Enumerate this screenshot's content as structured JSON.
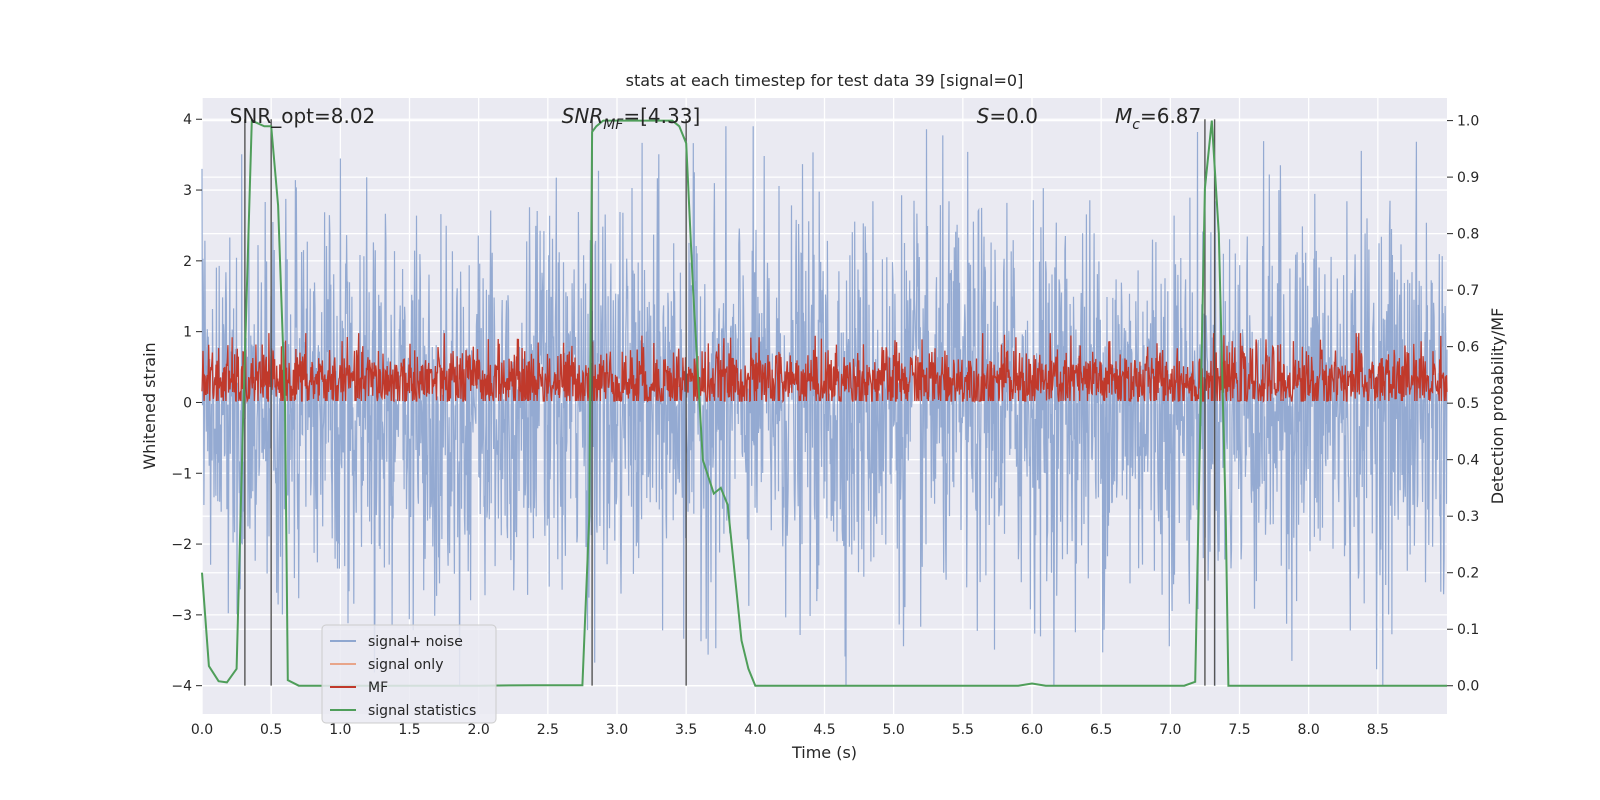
{
  "chart_data": {
    "type": "line",
    "title": "stats at each timestep for test data 39 [signal=0]",
    "xlabel": "Time (s)",
    "ylabel_left": "Whitened strain",
    "ylabel_right": "Detection probability/MF",
    "xlim": [
      0.0,
      9.0
    ],
    "ylim_left": [
      -4.4,
      4.3
    ],
    "ylim_right": [
      -0.05,
      1.04
    ],
    "xticks": [
      "0.0",
      "0.5",
      "1.0",
      "1.5",
      "2.0",
      "2.5",
      "3.0",
      "3.5",
      "4.0",
      "4.5",
      "5.0",
      "5.5",
      "6.0",
      "6.5",
      "7.0",
      "7.5",
      "8.0",
      "8.5"
    ],
    "yticks_left": [
      "4",
      "3",
      "2",
      "1",
      "0",
      "−1",
      "−2",
      "−3",
      "−4"
    ],
    "yticks_right": [
      "1.0",
      "0.9",
      "0.8",
      "0.7",
      "0.6",
      "0.5",
      "0.4",
      "0.3",
      "0.2",
      "0.1",
      "0.0"
    ],
    "grid": true,
    "legend_position": "lower-left",
    "legend": [
      {
        "label": "signal+ noise",
        "color": "#8fa7d0"
      },
      {
        "label": "signal only",
        "color": "#e8a58a"
      },
      {
        "label": "MF",
        "color": "#c0392b"
      },
      {
        "label": "signal statistics",
        "color": "#4f9e5a"
      }
    ],
    "annotations": [
      {
        "text": "SNR_opt=8.02",
        "x": 0.2
      },
      {
        "text": "SNR",
        "sub": "MF",
        "rest": "=[4.33]",
        "x": 2.6
      },
      {
        "text": "S",
        "rest": "=0.0",
        "x": 5.6
      },
      {
        "text": "M",
        "sub": "c",
        "rest": "=6.87",
        "x": 6.6
      }
    ],
    "series": [
      {
        "name": "signal+ noise",
        "axis": "left",
        "color": "#8fa7d0",
        "noise_amplitude": 1.35,
        "x_range": [
          0.0,
          9.0
        ]
      },
      {
        "name": "MF",
        "axis": "left",
        "color": "#c0392b",
        "baseline": 0.3,
        "noise_amplitude": 0.25,
        "x_range": [
          0.0,
          9.0
        ]
      },
      {
        "name": "signal statistics",
        "axis": "right",
        "color": "#4f9e5a",
        "x": [
          0.0,
          0.05,
          0.12,
          0.18,
          0.25,
          0.3,
          0.36,
          0.45,
          0.5,
          0.55,
          0.6,
          0.62,
          0.7,
          2.0,
          2.4,
          2.75,
          2.8,
          2.82,
          2.85,
          2.9,
          3.0,
          3.1,
          3.4,
          3.45,
          3.5,
          3.55,
          3.62,
          3.7,
          3.75,
          3.8,
          3.85,
          3.9,
          3.95,
          4.0,
          4.1,
          5.9,
          6.0,
          6.1,
          7.1,
          7.18,
          7.25,
          7.3,
          7.35,
          7.4,
          7.42,
          7.5,
          9.0
        ],
        "y": [
          0.2,
          0.035,
          0.008,
          0.006,
          0.03,
          0.5,
          1.0,
          0.99,
          0.99,
          0.85,
          0.5,
          0.01,
          0.0,
          0.0,
          0.001,
          0.001,
          0.3,
          0.98,
          0.99,
          1.0,
          1.0,
          1.0,
          1.0,
          0.99,
          0.96,
          0.7,
          0.4,
          0.34,
          0.35,
          0.32,
          0.2,
          0.08,
          0.03,
          0.0,
          0.0,
          0.0,
          0.004,
          0.0,
          0.0,
          0.007,
          0.88,
          1.0,
          0.8,
          0.3,
          0.0,
          0.0,
          0.0
        ]
      }
    ],
    "vertical_lines": [
      0.31,
      0.5,
      2.82,
      3.5,
      7.25,
      7.32
    ]
  }
}
